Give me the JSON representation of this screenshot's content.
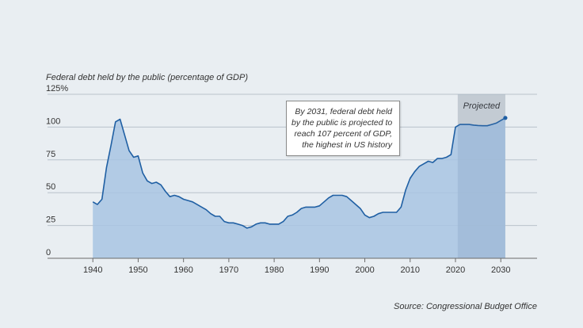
{
  "chart_data": {
    "type": "area",
    "title": "Federal debt held by the public (percentage of GDP)",
    "source": "Source:  Congressional Budget Office",
    "ylim": [
      0,
      125
    ],
    "xlim": [
      1930,
      2038
    ],
    "yticks": [
      0,
      25,
      50,
      75,
      100,
      125
    ],
    "ytick_labels": [
      "0",
      "25",
      "50",
      "75",
      "100",
      "125%"
    ],
    "xticks": [
      1940,
      1950,
      1960,
      1970,
      1980,
      1990,
      2000,
      2010,
      2020,
      2030
    ],
    "xtick_labels": [
      "1940",
      "1950",
      "1960",
      "1970",
      "1980",
      "1990",
      "2000",
      "2010",
      "2020",
      "2030"
    ],
    "grid": true,
    "projected": {
      "label": "Projected",
      "start": 2020.5,
      "end": 2031
    },
    "annotation": [
      "By 2031, federal debt held",
      "by the public is projected to",
      "reach 107 percent of GDP,",
      "the highest in US history"
    ],
    "colors": {
      "fill": "#a8c4e3",
      "line": "#1f5fa3",
      "projected_band": "#d2d6da",
      "background": "#e9eef2"
    },
    "series": [
      {
        "x": [
          1940,
          1941,
          1942,
          1943,
          1944,
          1945,
          1946,
          1947,
          1948,
          1949,
          1950,
          1951,
          1952,
          1953,
          1954,
          1955,
          1956,
          1957,
          1958,
          1959,
          1960,
          1961,
          1962,
          1963,
          1964,
          1965,
          1966,
          1967,
          1968,
          1969,
          1970,
          1971,
          1972,
          1973,
          1974,
          1975,
          1976,
          1977,
          1978,
          1979,
          1980,
          1981,
          1982,
          1983,
          1984,
          1985,
          1986,
          1987,
          1988,
          1989,
          1990,
          1991,
          1992,
          1993,
          1994,
          1995,
          1996,
          1997,
          1998,
          1999,
          2000,
          2001,
          2002,
          2003,
          2004,
          2005,
          2006,
          2007,
          2008,
          2009,
          2010,
          2011,
          2012,
          2013,
          2014,
          2015,
          2016,
          2017,
          2018,
          2019,
          2020,
          2021,
          2022,
          2023,
          2024,
          2025,
          2026,
          2027,
          2028,
          2029,
          2030,
          2031
        ],
        "values": [
          43,
          41,
          45,
          69,
          86,
          104,
          106,
          94,
          82,
          77,
          78,
          65,
          59,
          57,
          58,
          56,
          51,
          47,
          48,
          47,
          45,
          44,
          43,
          41,
          39,
          37,
          34,
          32,
          32,
          28,
          27,
          27,
          26,
          25,
          23,
          24,
          26,
          27,
          27,
          26,
          26,
          26,
          28,
          32,
          33,
          35,
          38,
          39,
          39,
          39,
          40,
          43,
          46,
          48,
          48,
          48,
          47,
          44,
          41,
          38,
          33,
          31,
          32,
          34,
          35,
          35,
          35,
          35,
          39,
          52,
          61,
          66,
          70,
          72,
          74,
          73,
          76,
          76,
          77,
          79,
          100,
          102,
          102,
          102,
          101.5,
          101.2,
          101,
          101,
          102,
          103,
          105,
          107
        ]
      }
    ]
  }
}
